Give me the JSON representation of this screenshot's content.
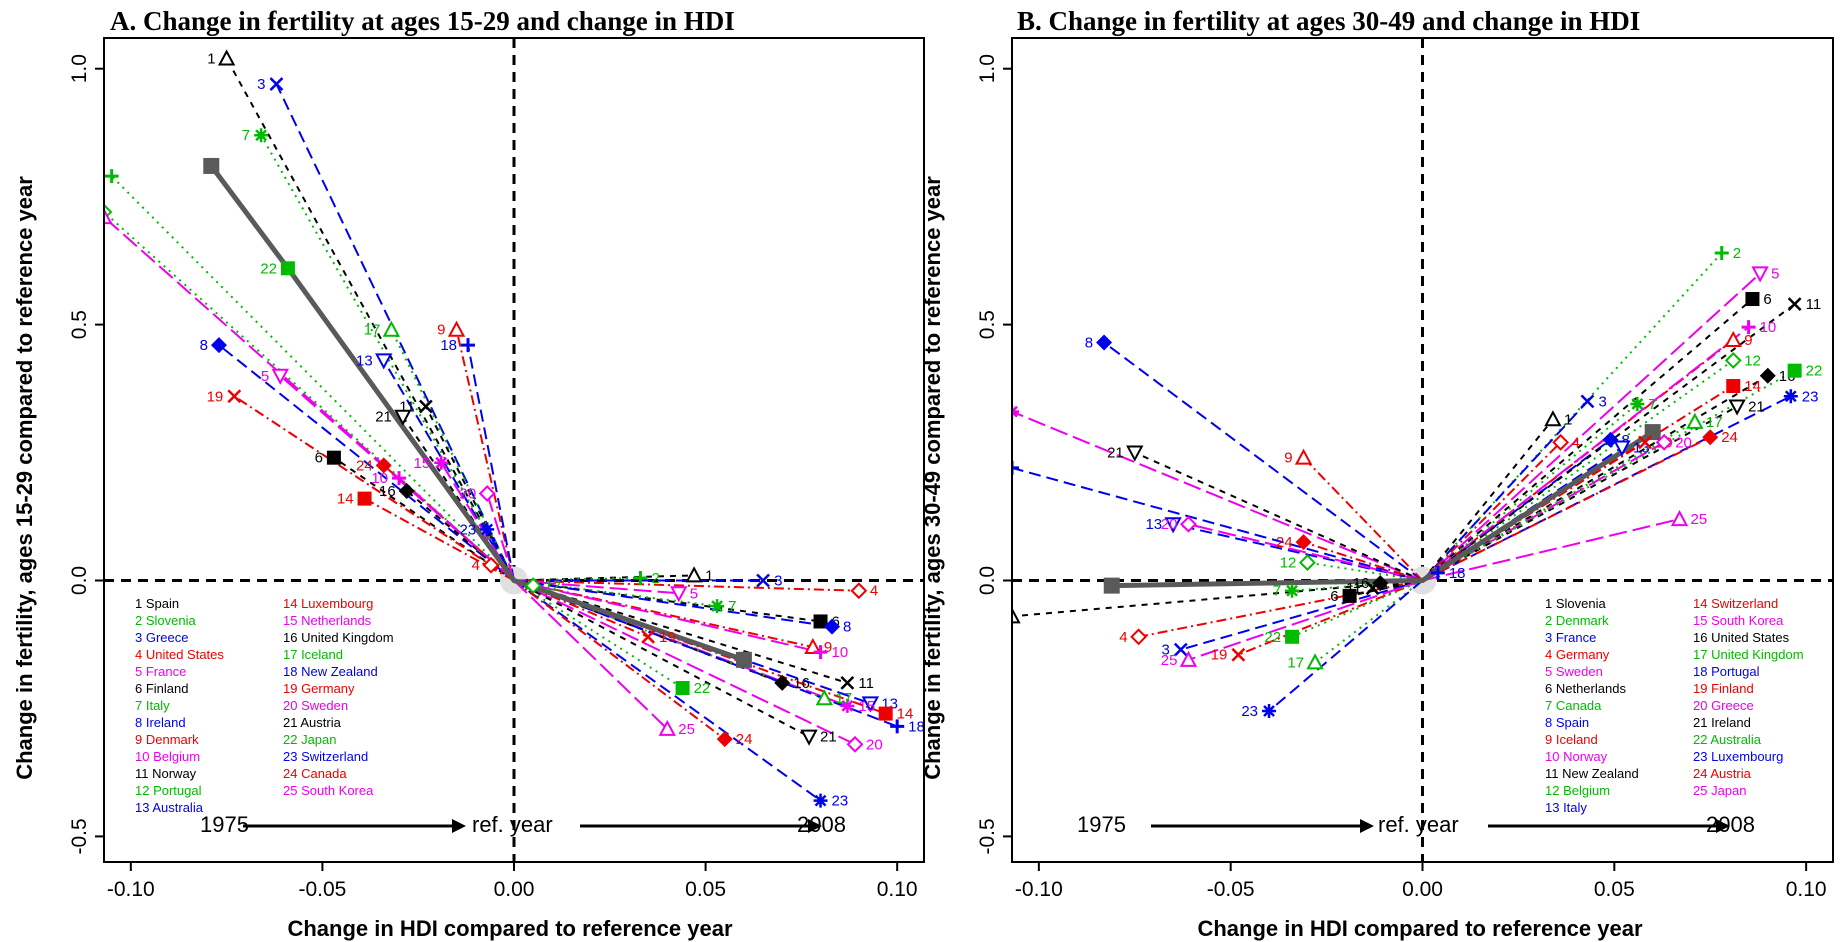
{
  "chart_data": [
    {
      "type": "scatter",
      "title": "A. Change in fertility at ages 15-29 and change in HDI",
      "xlabel": "Change in HDI compared to reference year",
      "ylabel": "Change in fertility, ages 15-29 compared to reference year",
      "xlim": [
        -0.107,
        0.107
      ],
      "ylim": [
        -0.55,
        1.06
      ],
      "xticks": [
        "-0.10",
        "-0.05",
        "0.00",
        "0.05",
        "0.10"
      ],
      "yticks": [
        "-0.5",
        "0.0",
        "0.5",
        "1.0"
      ],
      "timeline": {
        "start": "1975",
        "middle": "ref. year",
        "end": "2008"
      },
      "average_path": [
        [
          -0.079,
          0.81
        ],
        [
          -0.059,
          0.61
        ],
        [
          0.0,
          0.0
        ],
        [
          0.06,
          -0.155
        ]
      ],
      "series": [
        {
          "num": "1",
          "name": "Spain",
          "color": "#000000",
          "marker": "tri-up",
          "points": [
            [
              -0.075,
              1.02
            ],
            [
              0.047,
              0.01
            ]
          ]
        },
        {
          "num": "2",
          "name": "Slovenia",
          "color": "#00bb00",
          "marker": "plus",
          "points": [
            [
              -0.105,
              0.79
            ],
            [
              0.033,
              0.005
            ]
          ]
        },
        {
          "num": "3",
          "name": "Greece",
          "color": "#0000ee",
          "marker": "x",
          "points": [
            [
              -0.062,
              0.97
            ],
            [
              0.065,
              0.0
            ]
          ]
        },
        {
          "num": "4",
          "name": "United States",
          "color": "#ee0000",
          "marker": "diamond-open",
          "points": [
            [
              -0.006,
              0.03
            ],
            [
              0.09,
              -0.02
            ]
          ]
        },
        {
          "num": "5",
          "name": "France",
          "color": "#ee00ee",
          "marker": "tri-down",
          "points": [
            [
              -0.061,
              0.4
            ],
            [
              0.043,
              -0.025
            ]
          ]
        },
        {
          "num": "6",
          "name": "Finland",
          "color": "#000000",
          "marker": "square",
          "points": [
            [
              -0.047,
              0.24
            ],
            [
              0.08,
              -0.08
            ]
          ]
        },
        {
          "num": "7",
          "name": "Italy",
          "color": "#00bb00",
          "marker": "star",
          "points": [
            [
              -0.066,
              0.87
            ],
            [
              0.053,
              -0.05
            ]
          ]
        },
        {
          "num": "8",
          "name": "Ireland",
          "color": "#0000ee",
          "marker": "diamond",
          "points": [
            [
              -0.077,
              0.46
            ],
            [
              0.083,
              -0.09
            ]
          ]
        },
        {
          "num": "9",
          "name": "Denmark",
          "color": "#ee0000",
          "marker": "tri-up",
          "points": [
            [
              -0.015,
              0.49
            ],
            [
              0.078,
              -0.13
            ]
          ]
        },
        {
          "num": "10",
          "name": "Belgium",
          "color": "#ee00ee",
          "marker": "plus",
          "points": [
            [
              -0.03,
              0.2
            ],
            [
              0.08,
              -0.14
            ]
          ]
        },
        {
          "num": "11",
          "name": "Norway",
          "color": "#000000",
          "marker": "x",
          "points": [
            [
              -0.023,
              0.34
            ],
            [
              0.087,
              -0.2
            ]
          ]
        },
        {
          "num": "12",
          "name": "Portugal",
          "color": "#00bb00",
          "marker": "diamond-open",
          "points": [
            [
              -0.107,
              0.72
            ],
            [
              0.005,
              -0.01
            ]
          ]
        },
        {
          "num": "13",
          "name": "Australia",
          "color": "#0000ee",
          "marker": "tri-down",
          "points": [
            [
              -0.034,
              0.43
            ],
            [
              0.093,
              -0.24
            ]
          ]
        },
        {
          "num": "14",
          "name": "Luxembourg",
          "color": "#ee0000",
          "marker": "square",
          "points": [
            [
              -0.039,
              0.16
            ],
            [
              0.097,
              -0.26
            ]
          ]
        },
        {
          "num": "15",
          "name": "Netherlands",
          "color": "#ee00ee",
          "marker": "star",
          "points": [
            [
              -0.019,
              0.23
            ],
            [
              0.087,
              -0.245
            ]
          ]
        },
        {
          "num": "16",
          "name": "United Kingdom",
          "color": "#000000",
          "marker": "diamond",
          "points": [
            [
              -0.028,
              0.175
            ],
            [
              0.07,
              -0.2
            ]
          ]
        },
        {
          "num": "17",
          "name": "Iceland",
          "color": "#00bb00",
          "marker": "tri-up",
          "points": [
            [
              -0.032,
              0.49
            ],
            [
              0.081,
              -0.23
            ]
          ]
        },
        {
          "num": "18",
          "name": "New Zealand",
          "color": "#0000ee",
          "marker": "plus",
          "points": [
            [
              -0.012,
              0.46
            ],
            [
              0.1,
              -0.285
            ]
          ]
        },
        {
          "num": "19",
          "name": "Germany",
          "color": "#ee0000",
          "marker": "x",
          "points": [
            [
              -0.073,
              0.36
            ],
            [
              0.035,
              -0.11
            ]
          ]
        },
        {
          "num": "20",
          "name": "Sweden",
          "color": "#ee00ee",
          "marker": "diamond-open",
          "points": [
            [
              -0.007,
              0.17
            ],
            [
              0.089,
              -0.32
            ]
          ]
        },
        {
          "num": "21",
          "name": "Austria",
          "color": "#000000",
          "marker": "tri-down",
          "points": [
            [
              -0.029,
              0.32
            ],
            [
              0.077,
              -0.305
            ]
          ]
        },
        {
          "num": "22",
          "name": "Japan",
          "color": "#00bb00",
          "marker": "square",
          "points": [
            [
              -0.059,
              0.61
            ],
            [
              0.044,
              -0.21
            ]
          ]
        },
        {
          "num": "23",
          "name": "Switzerland",
          "color": "#0000ee",
          "marker": "star",
          "points": [
            [
              -0.007,
              0.1
            ],
            [
              0.08,
              -0.43
            ]
          ]
        },
        {
          "num": "24",
          "name": "Canada",
          "color": "#ee0000",
          "marker": "diamond",
          "points": [
            [
              -0.034,
              0.225
            ],
            [
              0.055,
              -0.31
            ]
          ]
        },
        {
          "num": "25",
          "name": "South Korea",
          "color": "#ee00ee",
          "marker": "tri-up",
          "points": [
            [
              -0.107,
              0.71
            ],
            [
              0.04,
              -0.29
            ]
          ]
        }
      ]
    },
    {
      "type": "scatter",
      "title": "B. Change in fertility at ages 30-49 and change in HDI",
      "xlabel": "Change in HDI compared to reference year",
      "ylabel": "Change in fertility, ages 30-49 compared to reference year",
      "xlim": [
        -0.107,
        0.107
      ],
      "ylim": [
        -0.55,
        1.06
      ],
      "xticks": [
        "-0.10",
        "-0.05",
        "0.00",
        "0.05",
        "0.10"
      ],
      "yticks": [
        "-0.5",
        "0.0",
        "0.5",
        "1.0"
      ],
      "timeline": {
        "start": "1975",
        "middle": "ref. year",
        "end": "2008"
      },
      "average_path": [
        [
          -0.081,
          -0.01
        ],
        [
          0.0,
          0.0
        ],
        [
          0.06,
          0.29
        ]
      ],
      "series": [
        {
          "num": "1",
          "name": "Slovenia",
          "color": "#000000",
          "marker": "tri-up",
          "points": [
            [
              -0.107,
              -0.07
            ],
            [
              0.034,
              0.315
            ]
          ]
        },
        {
          "num": "2",
          "name": "Denmark",
          "color": "#00bb00",
          "marker": "plus",
          "points": [
            [
              0.078,
              0.64
            ]
          ]
        },
        {
          "num": "3",
          "name": "France",
          "color": "#0000ee",
          "marker": "x",
          "points": [
            [
              -0.063,
              -0.135
            ],
            [
              0.043,
              0.35
            ]
          ]
        },
        {
          "num": "4",
          "name": "Germany",
          "color": "#ee0000",
          "marker": "diamond-open",
          "points": [
            [
              -0.074,
              -0.11
            ],
            [
              0.036,
              0.27
            ]
          ]
        },
        {
          "num": "5",
          "name": "Sweden",
          "color": "#ee00ee",
          "marker": "tri-down",
          "points": [
            [
              0.088,
              0.6
            ]
          ]
        },
        {
          "num": "6",
          "name": "Netherlands",
          "color": "#000000",
          "marker": "square",
          "points": [
            [
              -0.019,
              -0.03
            ],
            [
              0.086,
              0.55
            ]
          ]
        },
        {
          "num": "7",
          "name": "Canada",
          "color": "#00bb00",
          "marker": "star",
          "points": [
            [
              -0.034,
              -0.02
            ],
            [
              0.056,
              0.345
            ]
          ]
        },
        {
          "num": "8",
          "name": "Spain",
          "color": "#0000ee",
          "marker": "diamond",
          "points": [
            [
              -0.083,
              0.465
            ],
            [
              0.049,
              0.275
            ]
          ]
        },
        {
          "num": "9",
          "name": "Iceland",
          "color": "#ee0000",
          "marker": "tri-up",
          "points": [
            [
              -0.031,
              0.24
            ],
            [
              0.081,
              0.47
            ]
          ]
        },
        {
          "num": "10",
          "name": "Norway",
          "color": "#ee00ee",
          "marker": "plus",
          "points": [
            [
              0.085,
              0.495
            ]
          ]
        },
        {
          "num": "11",
          "name": "New Zealand",
          "color": "#000000",
          "marker": "x",
          "points": [
            [
              -0.013,
              -0.015
            ],
            [
              0.097,
              0.54
            ]
          ]
        },
        {
          "num": "12",
          "name": "Belgium",
          "color": "#00bb00",
          "marker": "diamond-open",
          "points": [
            [
              -0.03,
              0.035
            ],
            [
              0.081,
              0.43
            ]
          ]
        },
        {
          "num": "13",
          "name": "Italy",
          "color": "#0000ee",
          "marker": "tri-down",
          "points": [
            [
              -0.065,
              0.11
            ],
            [
              0.052,
              0.26
            ]
          ]
        },
        {
          "num": "14",
          "name": "Switzerland",
          "color": "#ee0000",
          "marker": "square",
          "points": [
            [
              0.081,
              0.38
            ]
          ]
        },
        {
          "num": "15",
          "name": "South Korea",
          "color": "#ee00ee",
          "marker": "star",
          "points": [
            [
              -0.107,
              0.33
            ]
          ]
        },
        {
          "num": "16",
          "name": "United States",
          "color": "#000000",
          "marker": "diamond",
          "points": [
            [
              -0.011,
              -0.005
            ],
            [
              0.09,
              0.4
            ]
          ]
        },
        {
          "num": "17",
          "name": "United Kingdom",
          "color": "#00bb00",
          "marker": "tri-up",
          "points": [
            [
              -0.028,
              -0.16
            ],
            [
              0.071,
              0.31
            ]
          ]
        },
        {
          "num": "18",
          "name": "Portugal",
          "color": "#0000ee",
          "marker": "plus",
          "points": [
            [
              -0.107,
              0.22
            ],
            [
              0.004,
              0.015
            ]
          ]
        },
        {
          "num": "19",
          "name": "Finland",
          "color": "#ee0000",
          "marker": "x",
          "points": [
            [
              -0.048,
              -0.145
            ],
            [
              0.058,
              0.27
            ]
          ]
        },
        {
          "num": "20",
          "name": "Greece",
          "color": "#ee00ee",
          "marker": "diamond-open",
          "points": [
            [
              -0.061,
              0.11
            ],
            [
              0.063,
              0.27
            ]
          ]
        },
        {
          "num": "21",
          "name": "Ireland",
          "color": "#000000",
          "marker": "tri-down",
          "points": [
            [
              -0.075,
              0.25
            ],
            [
              0.082,
              0.34
            ]
          ]
        },
        {
          "num": "22",
          "name": "Australia",
          "color": "#00bb00",
          "marker": "square",
          "points": [
            [
              -0.034,
              -0.11
            ],
            [
              0.097,
              0.41
            ]
          ]
        },
        {
          "num": "23",
          "name": "Luxembourg",
          "color": "#0000ee",
          "marker": "star",
          "points": [
            [
              -0.04,
              -0.255
            ],
            [
              0.096,
              0.36
            ]
          ]
        },
        {
          "num": "24",
          "name": "Austria",
          "color": "#ee0000",
          "marker": "diamond",
          "points": [
            [
              -0.031,
              0.075
            ],
            [
              0.075,
              0.28
            ]
          ]
        },
        {
          "num": "25",
          "name": "Japan",
          "color": "#ee00ee",
          "marker": "tri-up",
          "points": [
            [
              -0.061,
              -0.155
            ],
            [
              0.067,
              0.12
            ]
          ]
        }
      ]
    }
  ]
}
